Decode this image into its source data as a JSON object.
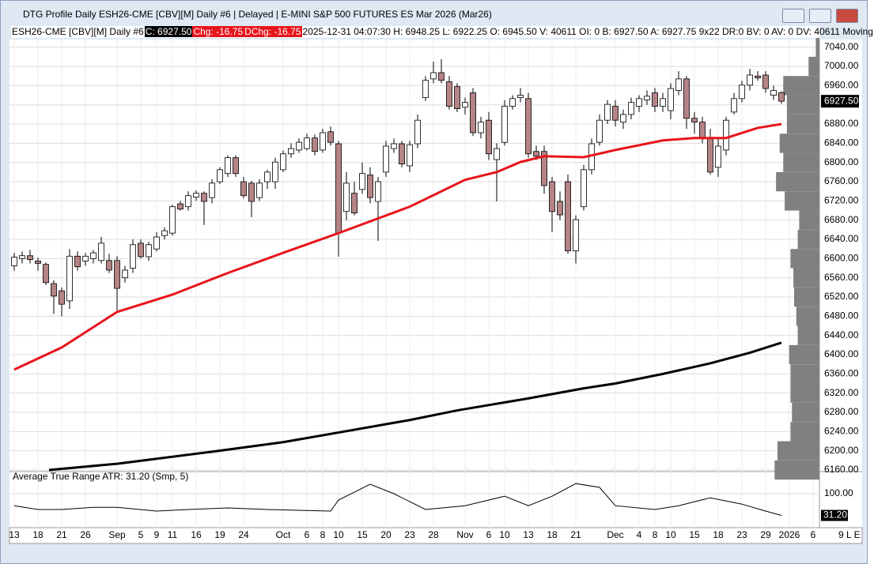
{
  "window_title": "DTG Profile Daily ESH26-CME [CBV][M]  Daily #6 | Delayed | E-MINI S&P 500 FUTURES ES Mar 2026 (Mar26)",
  "info": {
    "symbol": "ESH26-CME [CBV][M]  Daily #6",
    "close": "C: 6927.50",
    "chg": "Chg: -16.75",
    "dchg": "DChg: -16.75",
    "details": "2025-12-31 04:07:30 H: 6948.25 L: 6922.25 O: 6945.50 V: 40611 OI: 0 B: 6927.50 A: 6927.75 9x22 DR:0 BV: 0 AV: 0 DV: 40611 Moving"
  },
  "corner_label": "9 L E",
  "chart_data": [
    {
      "type": "candlestick",
      "up_color": "#ffffff",
      "down_color": "#b58486",
      "grid": true,
      "last_price_label": "6927.50",
      "xlim": [
        -0.6,
        101.8
      ],
      "ylim": [
        6160,
        7056
      ],
      "xticks": [
        {
          "value": 0,
          "label": "13"
        },
        {
          "value": 3,
          "label": "18"
        },
        {
          "value": 6,
          "label": "21"
        },
        {
          "value": 9,
          "label": "26"
        },
        {
          "value": 13,
          "label": "Sep"
        },
        {
          "value": 16,
          "label": "5"
        },
        {
          "value": 18,
          "label": "9"
        },
        {
          "value": 20,
          "label": "11"
        },
        {
          "value": 23,
          "label": "16"
        },
        {
          "value": 26,
          "label": "19"
        },
        {
          "value": 29,
          "label": "24"
        },
        {
          "value": 34,
          "label": "Oct"
        },
        {
          "value": 37,
          "label": "6"
        },
        {
          "value": 39,
          "label": "8"
        },
        {
          "value": 41,
          "label": "10"
        },
        {
          "value": 44,
          "label": "15"
        },
        {
          "value": 47,
          "label": "20"
        },
        {
          "value": 50,
          "label": "23"
        },
        {
          "value": 53,
          "label": "28"
        },
        {
          "value": 57,
          "label": "Nov"
        },
        {
          "value": 60,
          "label": "6"
        },
        {
          "value": 62,
          "label": "10"
        },
        {
          "value": 65,
          "label": "13"
        },
        {
          "value": 68,
          "label": "18"
        },
        {
          "value": 71,
          "label": "21"
        },
        {
          "value": 76,
          "label": "Dec"
        },
        {
          "value": 79,
          "label": "4"
        },
        {
          "value": 81,
          "label": "8"
        },
        {
          "value": 83,
          "label": "10"
        },
        {
          "value": 86,
          "label": "15"
        },
        {
          "value": 89,
          "label": "18"
        },
        {
          "value": 92,
          "label": "23"
        },
        {
          "value": 95,
          "label": "29"
        },
        {
          "value": 98,
          "label": "2026"
        },
        {
          "value": 101,
          "label": "6"
        }
      ],
      "yticks": [
        {
          "value": 6160,
          "label": "6160.00"
        },
        {
          "value": 6200,
          "label": "6200.00"
        },
        {
          "value": 6240,
          "label": "6240.00"
        },
        {
          "value": 6280,
          "label": "6280.00"
        },
        {
          "value": 6320,
          "label": "6320.00"
        },
        {
          "value": 6360,
          "label": "6360.00"
        },
        {
          "value": 6400,
          "label": "6400.00"
        },
        {
          "value": 6440,
          "label": "6440.00"
        },
        {
          "value": 6480,
          "label": "6480.00"
        },
        {
          "value": 6520,
          "label": "6520.00"
        },
        {
          "value": 6560,
          "label": "6560.00"
        },
        {
          "value": 6600,
          "label": "6600.00"
        },
        {
          "value": 6640,
          "label": "6640.00"
        },
        {
          "value": 6680,
          "label": "6680.00"
        },
        {
          "value": 6720,
          "label": "6720.00"
        },
        {
          "value": 6760,
          "label": "6760.00"
        },
        {
          "value": 6800,
          "label": "6800.00"
        },
        {
          "value": 6840,
          "label": "6840.00"
        },
        {
          "value": 6880,
          "label": "6880.00"
        },
        {
          "value": 6920,
          "label": "6920.00"
        },
        {
          "value": 6960,
          "label": "6960.00"
        },
        {
          "value": 7000,
          "label": "7000.00"
        },
        {
          "value": 7040,
          "label": "7040.00"
        }
      ],
      "ohlc": [
        [
          6585,
          6612,
          6575,
          6603
        ],
        [
          6600,
          6615,
          6590,
          6606
        ],
        [
          6606,
          6618,
          6590,
          6598
        ],
        [
          6595,
          6602,
          6575,
          6590
        ],
        [
          6588,
          6592,
          6545,
          6550
        ],
        [
          6548,
          6555,
          6485,
          6522
        ],
        [
          6533,
          6540,
          6480,
          6505
        ],
        [
          6512,
          6620,
          6495,
          6605
        ],
        [
          6605,
          6615,
          6575,
          6583
        ],
        [
          6595,
          6612,
          6585,
          6605
        ],
        [
          6600,
          6618,
          6590,
          6612
        ],
        [
          6596,
          6645,
          6590,
          6632
        ],
        [
          6596,
          6610,
          6570,
          6576
        ],
        [
          6596,
          6605,
          6492,
          6538
        ],
        [
          6560,
          6585,
          6550,
          6576
        ],
        [
          6580,
          6640,
          6570,
          6629
        ],
        [
          6632,
          6640,
          6600,
          6604
        ],
        [
          6604,
          6635,
          6595,
          6629
        ],
        [
          6620,
          6655,
          6615,
          6645
        ],
        [
          6648,
          6665,
          6640,
          6658
        ],
        [
          6653,
          6712,
          6648,
          6708
        ],
        [
          6714,
          6720,
          6700,
          6703
        ],
        [
          6708,
          6740,
          6700,
          6731
        ],
        [
          6728,
          6742,
          6720,
          6736
        ],
        [
          6736,
          6740,
          6670,
          6719
        ],
        [
          6727,
          6765,
          6715,
          6757
        ],
        [
          6760,
          6790,
          6755,
          6785
        ],
        [
          6777,
          6815,
          6770,
          6810
        ],
        [
          6810,
          6815,
          6770,
          6777
        ],
        [
          6760,
          6770,
          6725,
          6731
        ],
        [
          6757,
          6762,
          6686,
          6719
        ],
        [
          6727,
          6765,
          6720,
          6757
        ],
        [
          6760,
          6785,
          6745,
          6780
        ],
        [
          6760,
          6810,
          6745,
          6801
        ],
        [
          6785,
          6825,
          6780,
          6818
        ],
        [
          6818,
          6840,
          6810,
          6829
        ],
        [
          6826,
          6850,
          6820,
          6842
        ],
        [
          6829,
          6860,
          6825,
          6851
        ],
        [
          6851,
          6858,
          6815,
          6823
        ],
        [
          6826,
          6870,
          6820,
          6862
        ],
        [
          6864,
          6875,
          6835,
          6842
        ],
        [
          6839,
          6845,
          6604,
          6653
        ],
        [
          6698,
          6780,
          6680,
          6757
        ],
        [
          6736,
          6760,
          6690,
          6695
        ],
        [
          6744,
          6800,
          6735,
          6777
        ],
        [
          6774,
          6790,
          6715,
          6727
        ],
        [
          6719,
          6770,
          6637,
          6760
        ],
        [
          6780,
          6845,
          6770,
          6834
        ],
        [
          6829,
          6850,
          6820,
          6839
        ],
        [
          6839,
          6845,
          6790,
          6797
        ],
        [
          6793,
          6845,
          6780,
          6837
        ],
        [
          6839,
          6900,
          6830,
          6888
        ],
        [
          6935,
          6980,
          6928,
          6971
        ],
        [
          6974,
          7010,
          6965,
          6987
        ],
        [
          6987,
          7015,
          6965,
          6971
        ],
        [
          6968,
          6980,
          6910,
          6917
        ],
        [
          6958,
          6965,
          6905,
          6912
        ],
        [
          6915,
          6935,
          6900,
          6925
        ],
        [
          6945,
          6955,
          6855,
          6862
        ],
        [
          6862,
          6895,
          6850,
          6884
        ],
        [
          6888,
          6905,
          6805,
          6818
        ],
        [
          6806,
          6840,
          6719,
          6829
        ],
        [
          6842,
          6930,
          6835,
          6917
        ],
        [
          6917,
          6940,
          6910,
          6933
        ],
        [
          6935,
          6955,
          6925,
          6940
        ],
        [
          6933,
          6945,
          6810,
          6818
        ],
        [
          6823,
          6835,
          6805,
          6813
        ],
        [
          6823,
          6835,
          6735,
          6752
        ],
        [
          6760,
          6770,
          6655,
          6698
        ],
        [
          6719,
          6740,
          6680,
          6691
        ],
        [
          6760,
          6775,
          6610,
          6616
        ],
        [
          6616,
          6690,
          6590,
          6681
        ],
        [
          6708,
          6795,
          6700,
          6785
        ],
        [
          6785,
          6850,
          6775,
          6839
        ],
        [
          6842,
          6900,
          6835,
          6888
        ],
        [
          6888,
          6930,
          6880,
          6921
        ],
        [
          6917,
          6930,
          6875,
          6888
        ],
        [
          6884,
          6910,
          6870,
          6900
        ],
        [
          6900,
          6935,
          6890,
          6925
        ],
        [
          6917,
          6940,
          6905,
          6933
        ],
        [
          6930,
          6950,
          6920,
          6938
        ],
        [
          6945,
          6955,
          6905,
          6917
        ],
        [
          6917,
          6945,
          6905,
          6933
        ],
        [
          6908,
          6965,
          6890,
          6954
        ],
        [
          6950,
          6990,
          6940,
          6974
        ],
        [
          6974,
          6980,
          6870,
          6892
        ],
        [
          6892,
          6905,
          6860,
          6884
        ],
        [
          6884,
          6895,
          6840,
          6851
        ],
        [
          6851,
          6870,
          6775,
          6780
        ],
        [
          6790,
          6850,
          6770,
          6834
        ],
        [
          6826,
          6895,
          6815,
          6888
        ],
        [
          6905,
          6945,
          6900,
          6933
        ],
        [
          6933,
          6970,
          6925,
          6961
        ],
        [
          6961,
          6995,
          6950,
          6982
        ],
        [
          6980,
          6990,
          6970,
          6976
        ],
        [
          6982,
          6990,
          6945,
          6954
        ],
        [
          6940,
          6960,
          6930,
          6950
        ],
        [
          6945.5,
          6948.25,
          6922.25,
          6927.5
        ]
      ],
      "lines": [
        {
          "color": "#e8141b",
          "x": [
            0,
            6,
            13,
            20,
            27,
            34,
            41,
            50,
            57,
            61,
            64,
            67,
            72,
            76,
            82,
            86,
            90,
            94,
            97
          ],
          "values": [
            6369,
            6415,
            6489,
            6525,
            6570,
            6612,
            6653,
            6708,
            6764,
            6780,
            6801,
            6813,
            6811,
            6826,
            6846,
            6851,
            6851,
            6872,
            6880
          ]
        },
        {
          "color": "#000000",
          "x": [
            4.4,
            13,
            25,
            34,
            41,
            50,
            56,
            65,
            72,
            76,
            82,
            88,
            93,
            97
          ],
          "values": [
            6160,
            6173,
            6198,
            6218,
            6238,
            6264,
            6284,
            6309,
            6330,
            6340,
            6360,
            6382,
            6404,
            6425
          ]
        }
      ],
      "volume_profile": {
        "color": "#808080",
        "xlim": [
          0,
          70
        ],
        "prices": [
          6160,
          6200,
          6240,
          6280,
          6320,
          6360,
          6400,
          6440,
          6480,
          6520,
          6560,
          6600,
          6640,
          6680,
          6720,
          6760,
          6800,
          6840,
          6880,
          6920,
          6960,
          7000,
          7040
        ],
        "values": [
          62,
          58,
          40,
          38,
          40,
          40,
          42,
          30,
          32,
          35,
          36,
          40,
          30,
          28,
          48,
          60,
          50,
          55,
          45,
          45,
          50,
          15,
          5
        ]
      }
    },
    {
      "type": "line",
      "title": "Average True Range  ATR: 31.20  (Smp, 5)",
      "color": "#000000",
      "last_label": "31.20",
      "xlim": [
        -0.6,
        101.8
      ],
      "ylim": [
        0,
        170
      ],
      "yticks": [
        {
          "value": 100,
          "label": "100.00"
        }
      ],
      "x": [
        0,
        3,
        6,
        10,
        13,
        18,
        22,
        27,
        32,
        40,
        41,
        45,
        48,
        52,
        57,
        62,
        65,
        68,
        71,
        74,
        76,
        81,
        84,
        88,
        92,
        95,
        97
      ],
      "values": [
        62,
        50,
        50,
        57,
        57,
        45,
        50,
        55,
        50,
        45,
        80,
        130,
        100,
        50,
        62,
        92,
        62,
        92,
        132,
        120,
        62,
        50,
        62,
        87,
        67,
        45,
        31.2
      ]
    }
  ]
}
